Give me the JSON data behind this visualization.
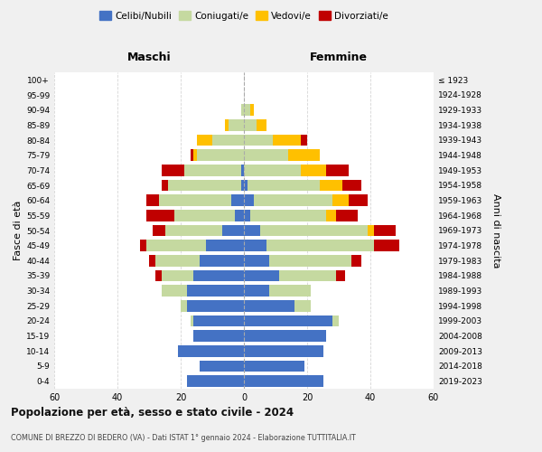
{
  "age_groups": [
    "0-4",
    "5-9",
    "10-14",
    "15-19",
    "20-24",
    "25-29",
    "30-34",
    "35-39",
    "40-44",
    "45-49",
    "50-54",
    "55-59",
    "60-64",
    "65-69",
    "70-74",
    "75-79",
    "80-84",
    "85-89",
    "90-94",
    "95-99",
    "100+"
  ],
  "birth_years": [
    "2019-2023",
    "2014-2018",
    "2009-2013",
    "2004-2008",
    "1999-2003",
    "1994-1998",
    "1989-1993",
    "1984-1988",
    "1979-1983",
    "1974-1978",
    "1969-1973",
    "1964-1968",
    "1959-1963",
    "1954-1958",
    "1949-1953",
    "1944-1948",
    "1939-1943",
    "1934-1938",
    "1929-1933",
    "1924-1928",
    "≤ 1923"
  ],
  "males": {
    "celibe": [
      18,
      14,
      21,
      16,
      16,
      18,
      18,
      16,
      14,
      12,
      7,
      3,
      4,
      1,
      1,
      0,
      0,
      0,
      0,
      0,
      0
    ],
    "coniugato": [
      0,
      0,
      0,
      0,
      1,
      2,
      8,
      10,
      14,
      19,
      18,
      19,
      23,
      23,
      18,
      15,
      10,
      5,
      1,
      0,
      0
    ],
    "vedovo": [
      0,
      0,
      0,
      0,
      0,
      0,
      0,
      0,
      0,
      0,
      0,
      0,
      0,
      0,
      0,
      1,
      5,
      1,
      0,
      0,
      0
    ],
    "divorziato": [
      0,
      0,
      0,
      0,
      0,
      0,
      0,
      2,
      2,
      2,
      4,
      9,
      4,
      2,
      7,
      1,
      0,
      0,
      0,
      0,
      0
    ]
  },
  "females": {
    "nubile": [
      25,
      19,
      25,
      26,
      28,
      16,
      8,
      11,
      8,
      7,
      5,
      2,
      3,
      1,
      0,
      0,
      0,
      0,
      0,
      0,
      0
    ],
    "coniugata": [
      0,
      0,
      0,
      0,
      2,
      5,
      13,
      18,
      26,
      34,
      34,
      24,
      25,
      23,
      18,
      14,
      9,
      4,
      2,
      0,
      0
    ],
    "vedova": [
      0,
      0,
      0,
      0,
      0,
      0,
      0,
      0,
      0,
      0,
      2,
      3,
      5,
      7,
      8,
      10,
      9,
      3,
      1,
      0,
      0
    ],
    "divorziata": [
      0,
      0,
      0,
      0,
      0,
      0,
      0,
      3,
      3,
      8,
      7,
      7,
      6,
      6,
      7,
      0,
      2,
      0,
      0,
      0,
      0
    ]
  },
  "colors": {
    "celibe": "#4472c4",
    "coniugato": "#c5d9a0",
    "vedovo": "#ffc000",
    "divorziato": "#c00000"
  },
  "legend_labels": [
    "Celibi/Nubili",
    "Coniugati/e",
    "Vedovi/e",
    "Divorziati/e"
  ],
  "xlim": 60,
  "title": "Popolazione per età, sesso e stato civile - 2024",
  "subtitle": "COMUNE DI BREZZO DI BEDERO (VA) - Dati ISTAT 1° gennaio 2024 - Elaborazione TUTTITALIA.IT",
  "ylabel_left": "Fasce di età",
  "ylabel_right": "Anni di nascita",
  "header_left": "Maschi",
  "header_right": "Femmine",
  "bg_color": "#f0f0f0",
  "plot_bg": "#ffffff"
}
